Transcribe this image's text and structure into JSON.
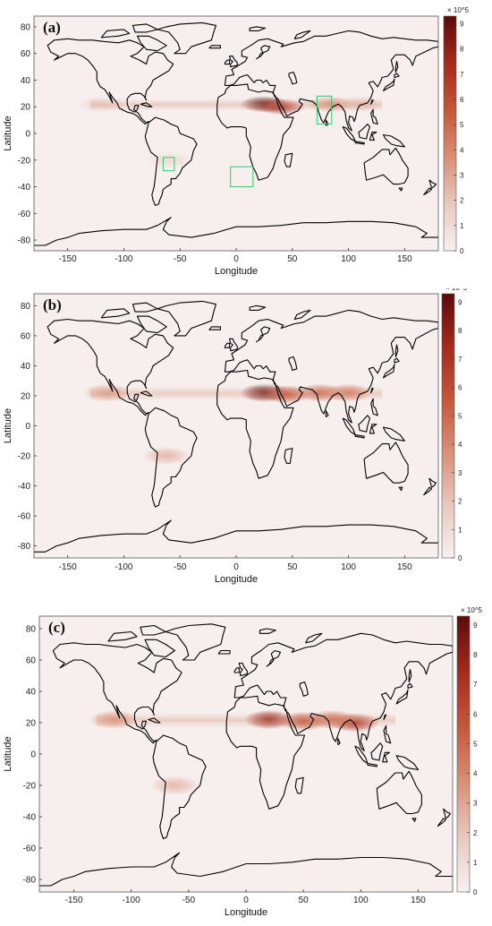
{
  "axes": {
    "xlabel": "Longitude",
    "ylabel": "Latitude",
    "xticks": [
      "-150",
      "-100",
      "-50",
      "0",
      "50",
      "100",
      "150"
    ],
    "yticks": [
      "80",
      "60",
      "40",
      "20",
      "0",
      "-20",
      "-40",
      "-60",
      "-80"
    ],
    "xlim": [
      -180,
      180
    ],
    "ylim": [
      -88,
      88
    ]
  },
  "colorbar": {
    "multiplier": "× 10^5",
    "ticks": [
      "0",
      "1",
      "2",
      "3",
      "4",
      "5",
      "6",
      "7",
      "8",
      "9"
    ],
    "range": [
      0,
      9.3
    ],
    "colors": [
      "#f7f1f0",
      "#e9c8be",
      "#d98f76",
      "#c4573a",
      "#a52a1c",
      "#5c0a0a"
    ]
  },
  "colors": {
    "background_map": "#f6efee",
    "coastline": "#000000",
    "box_outline": "#2ecc71"
  },
  "panels": [
    {
      "id": "a",
      "label": "(a)",
      "has_boxes": true
    },
    {
      "id": "b",
      "label": "(b)",
      "has_boxes": false
    },
    {
      "id": "c",
      "label": "(c)",
      "has_boxes": false
    }
  ],
  "chart_data": [
    {
      "type": "heatmap",
      "panel": "(a)",
      "xlabel": "Longitude",
      "ylabel": "Latitude",
      "xlim": [
        -180,
        180
      ],
      "ylim": [
        -88,
        88
      ],
      "color_range": [
        0,
        930000
      ],
      "hotspots": [
        {
          "lon": 25,
          "lat": 22,
          "value": 930000
        },
        {
          "lon": 40,
          "lat": 20,
          "value": 650000
        },
        {
          "lon": 85,
          "lat": 22,
          "value": 300000
        },
        {
          "lon": 110,
          "lat": 22,
          "value": 150000
        },
        {
          "lon": -120,
          "lat": 22,
          "value": 100000
        },
        {
          "lon": -60,
          "lat": -20,
          "value": 80000
        }
      ],
      "regions": [
        {
          "lon": [
            -65,
            -55
          ],
          "lat": [
            -28,
            -18
          ]
        },
        {
          "lon": [
            -5,
            15
          ],
          "lat": [
            -40,
            -25
          ]
        },
        {
          "lon": [
            72,
            85
          ],
          "lat": [
            7,
            28
          ]
        }
      ]
    },
    {
      "type": "heatmap",
      "panel": "(b)",
      "xlabel": "Longitude",
      "ylabel": "Latitude",
      "xlim": [
        -180,
        180
      ],
      "ylim": [
        -88,
        88
      ],
      "color_range": [
        0,
        930000
      ],
      "hotspots": [
        {
          "lon": 25,
          "lat": 22,
          "value": 900000
        },
        {
          "lon": 45,
          "lat": 21,
          "value": 550000
        },
        {
          "lon": 75,
          "lat": 22,
          "value": 450000
        },
        {
          "lon": 100,
          "lat": 22,
          "value": 400000
        },
        {
          "lon": -115,
          "lat": 22,
          "value": 250000
        },
        {
          "lon": -62,
          "lat": -20,
          "value": 200000
        }
      ]
    },
    {
      "type": "heatmap",
      "panel": "(c)",
      "xlabel": "Longitude",
      "ylabel": "Latitude",
      "xlim": [
        -180,
        180
      ],
      "ylim": [
        -88,
        88
      ],
      "color_range": [
        0,
        930000
      ],
      "hotspots": [
        {
          "lon": 20,
          "lat": 22,
          "value": 750000
        },
        {
          "lon": 50,
          "lat": 21,
          "value": 550000
        },
        {
          "lon": 95,
          "lat": 20,
          "value": 650000
        },
        {
          "lon": 75,
          "lat": 22,
          "value": 450000
        },
        {
          "lon": -115,
          "lat": 22,
          "value": 300000
        },
        {
          "lon": -62,
          "lat": -20,
          "value": 200000
        }
      ]
    }
  ]
}
